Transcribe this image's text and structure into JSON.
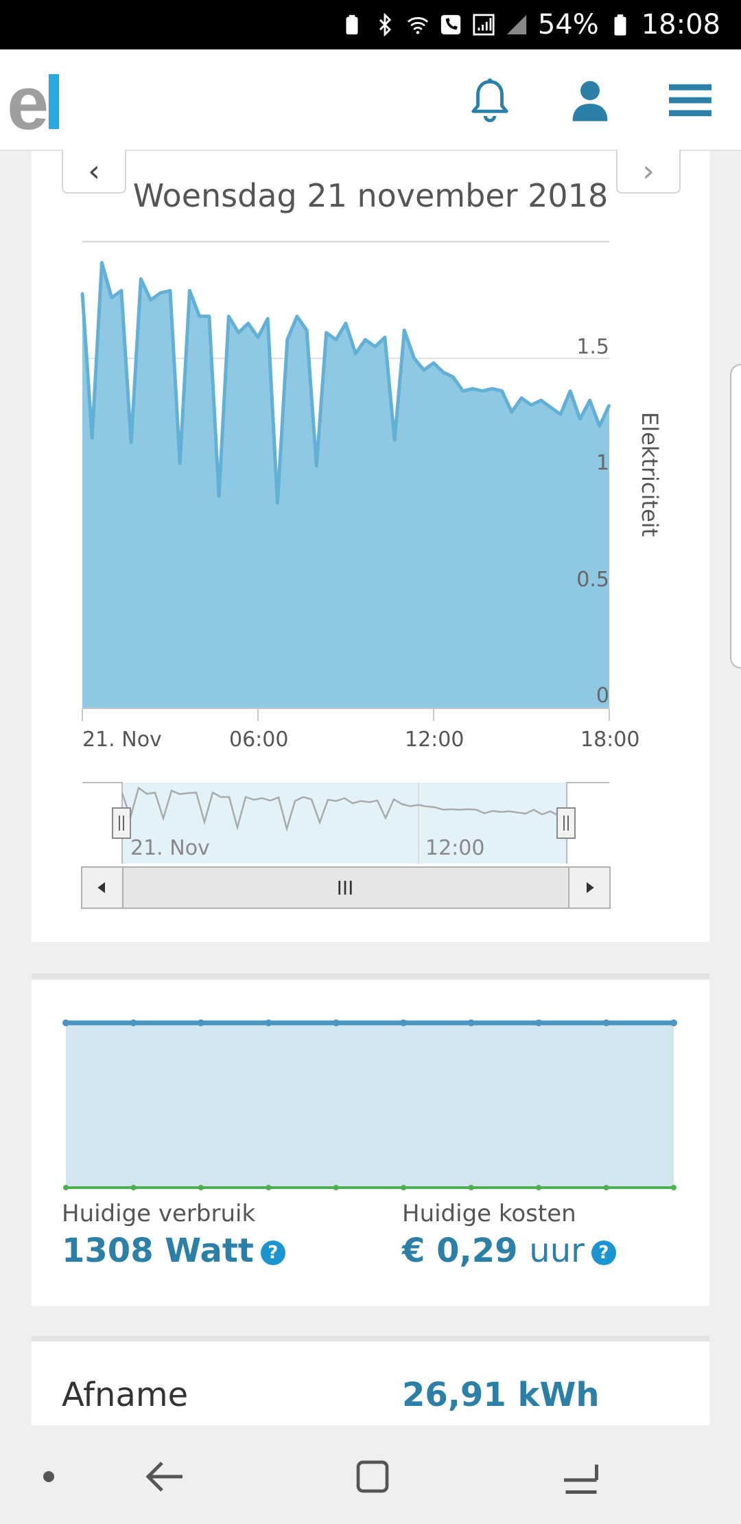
{
  "status_bar": {
    "battery_percent": "54%",
    "time": "18:08",
    "icons": [
      "battery-saver-icon",
      "bluetooth-icon",
      "wifi-icon",
      "call-icon",
      "signal-icon",
      "signal-icon",
      "battery-icon"
    ]
  },
  "app_bar": {
    "logo_e": "e",
    "logo_l": "l",
    "icons": [
      "bell-icon",
      "user-icon",
      "menu-icon"
    ]
  },
  "day_chart": {
    "prev_label": "‹",
    "next_label": "›",
    "date_title": "Woensdag 21 november 2018",
    "y_axis_title": "Elektriciteit",
    "y_ticks": [
      "0",
      "0.5",
      "1",
      "1.5"
    ],
    "x_ticks": [
      "21. Nov",
      "06:00",
      "12:00",
      "18:00"
    ],
    "navigator_x_ticks": [
      "21. Nov",
      "12:00"
    ],
    "scroll_grip_label": "III"
  },
  "chart_data": {
    "type": "area",
    "title": "",
    "xlabel": "",
    "ylabel": "Elektriciteit",
    "ylim": [
      0,
      2
    ],
    "x_range": [
      "2018-11-21 00:00",
      "2018-11-21 18:00"
    ],
    "x": [
      "00:00",
      "00:20",
      "00:40",
      "01:00",
      "01:20",
      "01:40",
      "02:00",
      "02:20",
      "02:40",
      "03:00",
      "03:20",
      "03:40",
      "04:00",
      "04:20",
      "04:40",
      "05:00",
      "05:20",
      "05:40",
      "06:00",
      "06:20",
      "06:40",
      "07:00",
      "07:20",
      "07:40",
      "08:00",
      "08:20",
      "08:40",
      "09:00",
      "09:20",
      "09:40",
      "10:00",
      "10:20",
      "10:40",
      "11:00",
      "11:20",
      "11:40",
      "12:00",
      "12:20",
      "12:40",
      "13:00",
      "13:20",
      "13:40",
      "14:00",
      "14:20",
      "14:40",
      "15:00",
      "15:20",
      "15:40",
      "16:00",
      "16:20",
      "16:40",
      "17:00",
      "17:20",
      "17:40",
      "18:00"
    ],
    "series": [
      {
        "values": [
          1.78,
          1.16,
          1.91,
          1.76,
          1.79,
          1.14,
          1.84,
          1.75,
          1.78,
          1.79,
          1.05,
          1.79,
          1.68,
          1.68,
          0.91,
          1.68,
          1.61,
          1.65,
          1.59,
          1.67,
          0.88,
          1.58,
          1.68,
          1.62,
          1.04,
          1.61,
          1.58,
          1.65,
          1.52,
          1.58,
          1.55,
          1.59,
          1.15,
          1.62,
          1.5,
          1.45,
          1.48,
          1.44,
          1.42,
          1.36,
          1.37,
          1.36,
          1.37,
          1.36,
          1.27,
          1.33,
          1.3,
          1.32,
          1.29,
          1.26,
          1.36,
          1.24,
          1.32,
          1.21,
          1.3
        ]
      }
    ]
  },
  "realtime_chart": {
    "type": "line",
    "series": [
      {
        "values": [
          1308,
          1308,
          1308,
          1308,
          1308,
          1308,
          1308,
          1308,
          1308,
          1308
        ]
      },
      {
        "values": [
          0,
          0,
          0,
          0,
          0,
          0,
          0,
          0,
          0,
          0
        ]
      }
    ]
  },
  "current": {
    "usage_label": "Huidige verbruik",
    "usage_value": "1308 Watt",
    "cost_label": "Huidige kosten",
    "cost_value": "€ 0,29",
    "cost_unit": "uur",
    "help_glyph": "?"
  },
  "totals": {
    "label": "Afname",
    "value": "26,91 kWh"
  },
  "colors": {
    "area_fill": "#8fc8e3",
    "area_stroke": "#62b0d6",
    "accent": "#2c7fa6",
    "realtime_fill": "#d3e5ee",
    "realtime_line": "#4a96c0",
    "zero_line": "#4caf50"
  }
}
